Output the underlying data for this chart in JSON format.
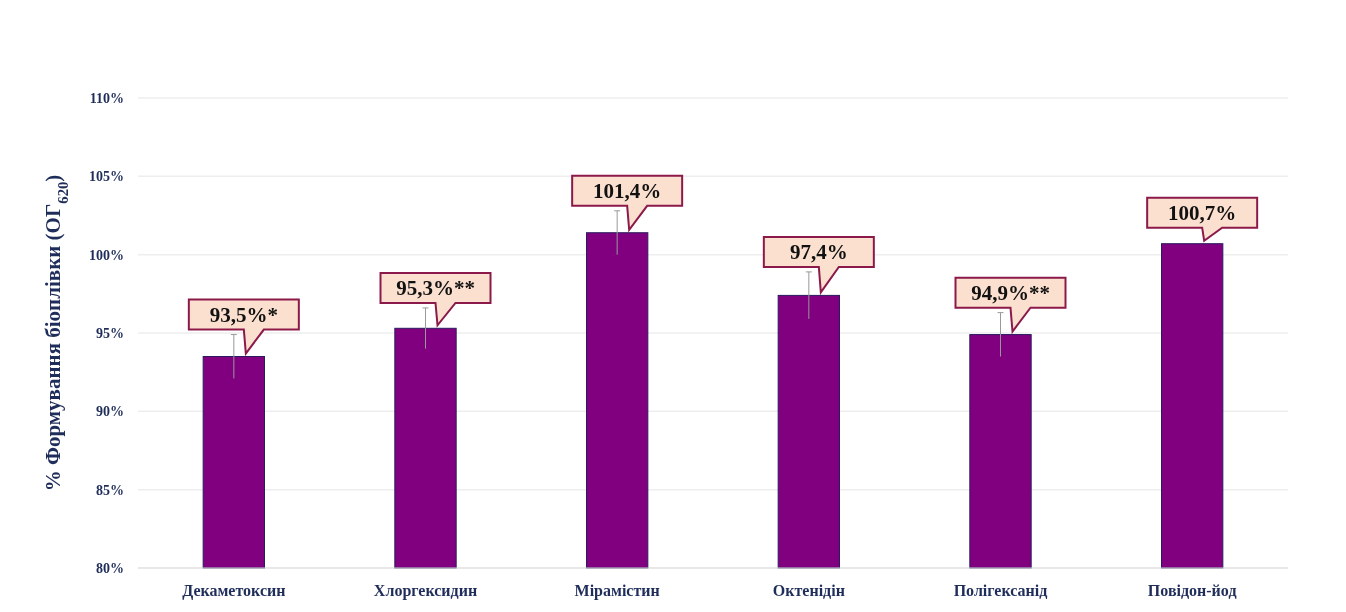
{
  "chart_data": {
    "type": "bar",
    "ylabel": "% Формування біоплівки (ОГ$_{620}$)",
    "categories": [
      "Декаметоксин",
      "Хлоргексидин",
      "Мірамістин",
      "Октенідін",
      "Полігексанід",
      "Повідон-йод"
    ],
    "values": [
      93.5,
      95.3,
      101.4,
      97.4,
      94.9,
      100.7
    ],
    "errors": [
      1.4,
      1.3,
      1.4,
      1.5,
      1.4,
      null
    ],
    "value_labels": [
      "93,5%*",
      "95,3%**",
      "101,4%",
      "97,4%",
      "94,9%**",
      "100,7%"
    ],
    "color": "#800080",
    "ylim": [
      80,
      110
    ],
    "yticks": [
      {
        "value": 80,
        "label": "80%"
      },
      {
        "value": 85,
        "label": "85%"
      },
      {
        "value": 90,
        "label": "90%"
      },
      {
        "value": 95,
        "label": "95%"
      },
      {
        "value": 100,
        "label": "100%"
      },
      {
        "value": 105,
        "label": "105%"
      },
      {
        "value": 110,
        "label": "110%"
      }
    ],
    "grid": "y"
  }
}
